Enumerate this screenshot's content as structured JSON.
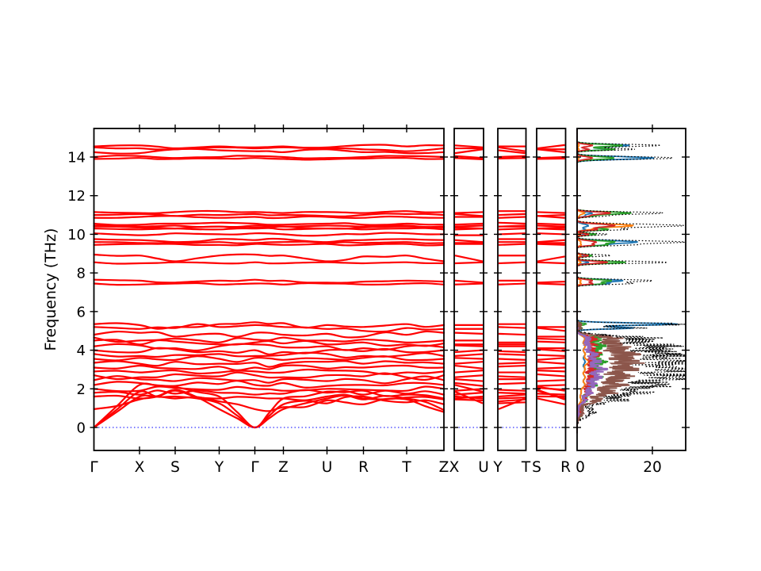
{
  "figure": {
    "background": "#ffffff",
    "axis_color": "#000000"
  },
  "chart_data": {
    "type": "line",
    "subtype": "phonon-band-structure-with-projected-dos",
    "title": "",
    "ylabel": "Frequency (THz)",
    "yticks": [
      0,
      2,
      4,
      6,
      8,
      10,
      12,
      14
    ],
    "ylim": [
      -1.19,
      15.48
    ],
    "band_color": "#ff0000",
    "zero_line": {
      "frequency": 0,
      "color": "#0000ff",
      "style": "dotted"
    },
    "main_panel": {
      "kpoint_labels": [
        "Γ",
        "X",
        "S",
        "Y",
        "Γ",
        "Z",
        "U",
        "R",
        "T",
        "Z"
      ],
      "bands": [
        [
          0.0,
          1.6,
          1.95,
          0.95,
          0.0,
          0.95,
          1.5,
          1.45,
          1.5,
          0.9
        ],
        [
          0.0,
          1.85,
          1.6,
          1.25,
          0.0,
          1.2,
          1.25,
          1.6,
          1.3,
          1.2
        ],
        [
          0.0,
          2.2,
          2.1,
          1.6,
          0.0,
          1.5,
          1.85,
          1.9,
          1.7,
          1.5
        ],
        [
          0.95,
          1.45,
          1.5,
          1.35,
          0.95,
          1.05,
          1.4,
          1.2,
          1.45,
          0.8
        ],
        [
          1.6,
          1.5,
          1.9,
          1.5,
          1.55,
          1.5,
          1.6,
          1.5,
          1.55,
          1.45
        ],
        [
          1.8,
          1.7,
          1.75,
          1.8,
          1.7,
          1.75,
          1.8,
          1.7,
          1.75,
          1.7
        ],
        [
          2.0,
          1.9,
          2.05,
          1.95,
          2.0,
          1.9,
          2.0,
          1.95,
          1.9,
          2.0
        ],
        [
          2.2,
          2.3,
          2.15,
          2.25,
          2.2,
          2.3,
          2.15,
          2.2,
          2.3,
          2.2
        ],
        [
          2.45,
          2.5,
          2.4,
          2.5,
          2.45,
          2.5,
          2.4,
          2.45,
          2.5,
          2.45
        ],
        [
          2.7,
          2.6,
          2.75,
          2.65,
          2.7,
          2.6,
          2.7,
          2.65,
          2.6,
          2.7
        ],
        [
          2.9,
          2.85,
          2.95,
          2.85,
          2.9,
          2.85,
          2.95,
          2.9,
          2.85,
          2.9
        ],
        [
          3.1,
          3.2,
          3.05,
          3.15,
          3.1,
          3.2,
          3.05,
          3.1,
          3.2,
          3.1
        ],
        [
          3.35,
          3.3,
          3.4,
          3.3,
          3.35,
          3.3,
          3.4,
          3.3,
          3.35,
          3.3
        ],
        [
          3.55,
          3.6,
          3.5,
          3.55,
          3.6,
          3.5,
          3.55,
          3.6,
          3.5,
          3.55
        ],
        [
          3.8,
          3.7,
          3.75,
          3.8,
          3.7,
          3.75,
          3.8,
          3.7,
          3.75,
          3.7
        ],
        [
          4.0,
          3.9,
          4.05,
          3.95,
          4.0,
          3.9,
          4.0,
          3.95,
          3.9,
          4.0
        ],
        [
          4.2,
          4.25,
          4.1,
          4.2,
          4.3,
          4.15,
          4.2,
          4.1,
          4.2,
          4.15
        ],
        [
          4.5,
          4.3,
          4.45,
          4.3,
          4.4,
          4.35,
          4.3,
          4.4,
          4.3,
          4.35
        ],
        [
          4.65,
          4.5,
          4.6,
          4.4,
          4.55,
          4.65,
          4.5,
          4.55,
          4.4,
          4.5
        ],
        [
          4.8,
          4.9,
          4.7,
          4.85,
          4.9,
          4.8,
          4.85,
          4.7,
          4.8,
          4.9
        ],
        [
          5.2,
          5.1,
          5.15,
          5.2,
          5.3,
          5.2,
          5.1,
          5.0,
          5.15,
          5.1
        ],
        [
          5.35,
          5.3,
          5.2,
          5.35,
          5.45,
          5.4,
          5.3,
          5.2,
          5.35,
          5.3
        ],
        [
          7.45,
          7.4,
          7.45,
          7.4,
          7.45,
          7.4,
          7.45,
          7.4,
          7.45,
          7.4
        ],
        [
          7.65,
          7.6,
          7.5,
          7.6,
          7.65,
          7.6,
          7.5,
          7.55,
          7.6,
          7.55
        ],
        [
          8.55,
          8.5,
          8.55,
          8.5,
          8.55,
          8.5,
          8.55,
          8.5,
          8.55,
          8.5
        ],
        [
          8.95,
          8.9,
          8.6,
          8.9,
          8.95,
          8.9,
          8.6,
          8.85,
          8.9,
          8.6
        ],
        [
          9.45,
          9.5,
          9.5,
          9.45,
          9.5,
          9.45,
          9.5,
          9.45,
          9.5,
          9.45
        ],
        [
          9.6,
          9.55,
          9.55,
          9.6,
          9.55,
          9.6,
          9.55,
          9.55,
          9.6,
          9.55
        ],
        [
          9.75,
          9.7,
          9.6,
          9.75,
          9.7,
          9.75,
          9.6,
          9.7,
          9.75,
          9.7
        ],
        [
          10.05,
          9.95,
          10.05,
          10.0,
          10.05,
          10.0,
          9.95,
          10.0,
          10.05,
          10.0
        ],
        [
          10.3,
          10.25,
          10.3,
          10.25,
          10.3,
          10.25,
          10.3,
          10.25,
          10.3,
          10.25
        ],
        [
          10.4,
          10.35,
          10.3,
          10.4,
          10.35,
          10.4,
          10.3,
          10.35,
          10.4,
          10.35
        ],
        [
          10.45,
          10.4,
          10.45,
          10.4,
          10.45,
          10.4,
          10.45,
          10.4,
          10.45,
          10.4
        ],
        [
          10.55,
          10.5,
          10.55,
          10.6,
          10.55,
          10.5,
          10.55,
          10.5,
          10.55,
          10.5
        ],
        [
          10.85,
          10.9,
          10.95,
          10.85,
          10.9,
          10.85,
          10.9,
          10.85,
          10.9,
          10.85
        ],
        [
          11.0,
          11.05,
          10.95,
          11.0,
          11.05,
          11.0,
          10.95,
          11.0,
          11.05,
          11.0
        ],
        [
          11.15,
          11.1,
          11.15,
          11.2,
          11.15,
          11.1,
          11.15,
          11.1,
          11.2,
          11.15
        ],
        [
          13.9,
          13.95,
          13.9,
          13.92,
          13.95,
          13.9,
          13.88,
          13.92,
          13.95,
          13.9
        ],
        [
          14.0,
          14.05,
          13.95,
          14.0,
          14.05,
          14.0,
          13.95,
          14.0,
          14.05,
          14.0
        ],
        [
          14.25,
          14.2,
          14.4,
          14.35,
          14.3,
          14.25,
          14.4,
          14.25,
          14.2,
          14.25
        ],
        [
          14.5,
          14.45,
          14.4,
          14.5,
          14.45,
          14.5,
          14.45,
          14.4,
          14.3,
          14.45
        ],
        [
          14.55,
          14.6,
          14.45,
          14.55,
          14.5,
          14.55,
          14.5,
          14.62,
          14.55,
          14.6
        ]
      ]
    },
    "mini_panels": [
      {
        "kpoint_labels": [
          "X",
          "U"
        ],
        "node_indices": [
          1,
          6
        ]
      },
      {
        "kpoint_labels": [
          "Y",
          "T"
        ],
        "node_indices": [
          3,
          8
        ]
      },
      {
        "kpoint_labels": [
          "S",
          "R"
        ],
        "node_indices": [
          2,
          7
        ]
      }
    ],
    "dos_panel": {
      "xticks": [
        0,
        20
      ],
      "xlim": [
        0,
        28.8
      ],
      "total_curve": {
        "color": "#000000",
        "style": "dotted"
      },
      "species_colors": [
        "#1f77b4",
        "#ff7f0e",
        "#2ca02c",
        "#d62728",
        "#9467bd",
        "#8c564b"
      ],
      "peaks": [
        {
          "f": 0.8,
          "w": 0.25,
          "total": 4,
          "species": [
            0.5,
            0.3,
            1,
            1,
            0.5,
            1.5
          ]
        },
        {
          "f": 1.4,
          "w": 0.15,
          "total": 10,
          "species": [
            1,
            1,
            2,
            2,
            2,
            5
          ]
        },
        {
          "f": 1.8,
          "w": 0.15,
          "total": 15,
          "species": [
            1,
            1,
            3,
            3,
            3,
            8
          ]
        },
        {
          "f": 2.2,
          "w": 0.15,
          "total": 20,
          "species": [
            2,
            2,
            4,
            3,
            4,
            10
          ]
        },
        {
          "f": 2.6,
          "w": 0.15,
          "total": 26,
          "species": [
            2,
            2,
            5,
            4,
            5,
            12
          ]
        },
        {
          "f": 3.0,
          "w": 0.15,
          "total": 28,
          "species": [
            2,
            2,
            5,
            4,
            6,
            13
          ]
        },
        {
          "f": 3.4,
          "w": 0.15,
          "total": 26,
          "species": [
            2,
            3,
            6,
            4,
            5,
            14
          ]
        },
        {
          "f": 3.8,
          "w": 0.15,
          "total": 25,
          "species": [
            2,
            2,
            5,
            5,
            4,
            13
          ]
        },
        {
          "f": 4.2,
          "w": 0.15,
          "total": 22,
          "species": [
            2,
            2,
            6,
            4,
            3,
            11
          ]
        },
        {
          "f": 4.6,
          "w": 0.15,
          "total": 18,
          "species": [
            2,
            2,
            5,
            4,
            3,
            10
          ]
        },
        {
          "f": 5.15,
          "w": 0.05,
          "total": 16,
          "species": [
            15,
            0.5,
            1,
            1,
            0.3,
            1
          ]
        },
        {
          "f": 5.35,
          "w": 0.06,
          "total": 27,
          "species": [
            26,
            0.5,
            2,
            1,
            0.3,
            1
          ]
        },
        {
          "f": 7.45,
          "w": 0.05,
          "total": 14,
          "species": [
            8,
            1,
            7,
            4,
            0,
            0
          ]
        },
        {
          "f": 7.6,
          "w": 0.06,
          "total": 20,
          "species": [
            12,
            1,
            9,
            4,
            0,
            0
          ]
        },
        {
          "f": 8.55,
          "w": 0.06,
          "total": 24,
          "species": [
            3,
            1,
            13,
            8,
            0,
            0
          ]
        },
        {
          "f": 8.9,
          "w": 0.05,
          "total": 9,
          "species": [
            2,
            1,
            4,
            3,
            0,
            0
          ]
        },
        {
          "f": 9.45,
          "w": 0.05,
          "total": 12,
          "species": [
            6,
            1,
            7,
            4,
            0,
            0
          ]
        },
        {
          "f": 9.6,
          "w": 0.07,
          "total": 28,
          "species": [
            16,
            1,
            10,
            5,
            0,
            0
          ]
        },
        {
          "f": 10.0,
          "w": 0.05,
          "total": 8,
          "species": [
            2,
            1,
            5,
            3,
            0,
            0
          ]
        },
        {
          "f": 10.25,
          "w": 0.05,
          "total": 12,
          "species": [
            2,
            3,
            8,
            5,
            0,
            0
          ]
        },
        {
          "f": 10.45,
          "w": 0.08,
          "total": 28,
          "species": [
            3,
            15,
            10,
            10,
            0,
            0
          ]
        },
        {
          "f": 10.95,
          "w": 0.05,
          "total": 7,
          "species": [
            2,
            0.5,
            4,
            3,
            0,
            0
          ]
        },
        {
          "f": 11.1,
          "w": 0.06,
          "total": 23,
          "species": [
            4,
            2,
            14,
            9,
            0,
            0
          ]
        },
        {
          "f": 13.95,
          "w": 0.07,
          "total": 25,
          "species": [
            20,
            0.5,
            10,
            4,
            0,
            0
          ]
        },
        {
          "f": 14.4,
          "w": 0.05,
          "total": 15,
          "species": [
            9,
            0.5,
            10,
            3,
            0,
            0
          ]
        },
        {
          "f": 14.6,
          "w": 0.06,
          "total": 22,
          "species": [
            14,
            0.5,
            12,
            4,
            0,
            0
          ]
        }
      ]
    }
  }
}
